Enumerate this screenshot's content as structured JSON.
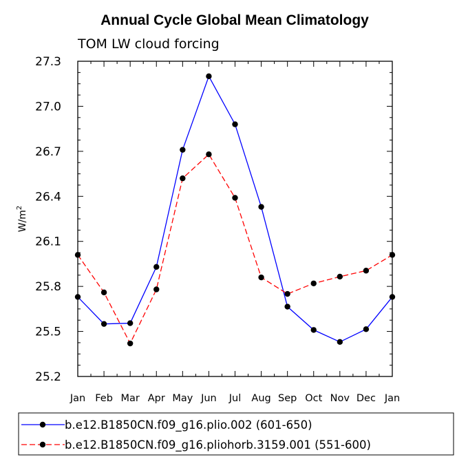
{
  "chart_data": {
    "type": "line",
    "title": "Annual Cycle Global Mean Climatology",
    "subtitle": "TOM LW cloud forcing",
    "xlabel": "",
    "ylabel_base": "W/m",
    "ylabel_sup": "2",
    "categories": [
      "Jan",
      "Feb",
      "Mar",
      "Apr",
      "May",
      "Jun",
      "Jul",
      "Aug",
      "Sep",
      "Oct",
      "Nov",
      "Dec",
      "Jan"
    ],
    "ylim": [
      25.2,
      27.3
    ],
    "yticks": [
      "25.2",
      "25.5",
      "25.8",
      "26.1",
      "26.4",
      "26.7",
      "27.0",
      "27.3"
    ],
    "series": [
      {
        "name": "b.e12.B1850CN.f09_g16.plio.002 (601-650)",
        "color": "#0000ff",
        "dash": "solid",
        "values": [
          25.73,
          25.55,
          25.555,
          25.93,
          26.71,
          27.2,
          26.88,
          26.33,
          25.665,
          25.51,
          25.43,
          25.515,
          25.73
        ]
      },
      {
        "name": "b.e12.B1850CN.f09_g16.pliohorb.3159.001 (551-600)",
        "color": "#ff0000",
        "dash": "dashed",
        "values": [
          26.01,
          25.76,
          25.42,
          25.78,
          26.52,
          26.68,
          26.39,
          25.86,
          25.75,
          25.82,
          25.865,
          25.905,
          26.01
        ]
      }
    ],
    "grid": false,
    "legend_position": "bottom"
  }
}
